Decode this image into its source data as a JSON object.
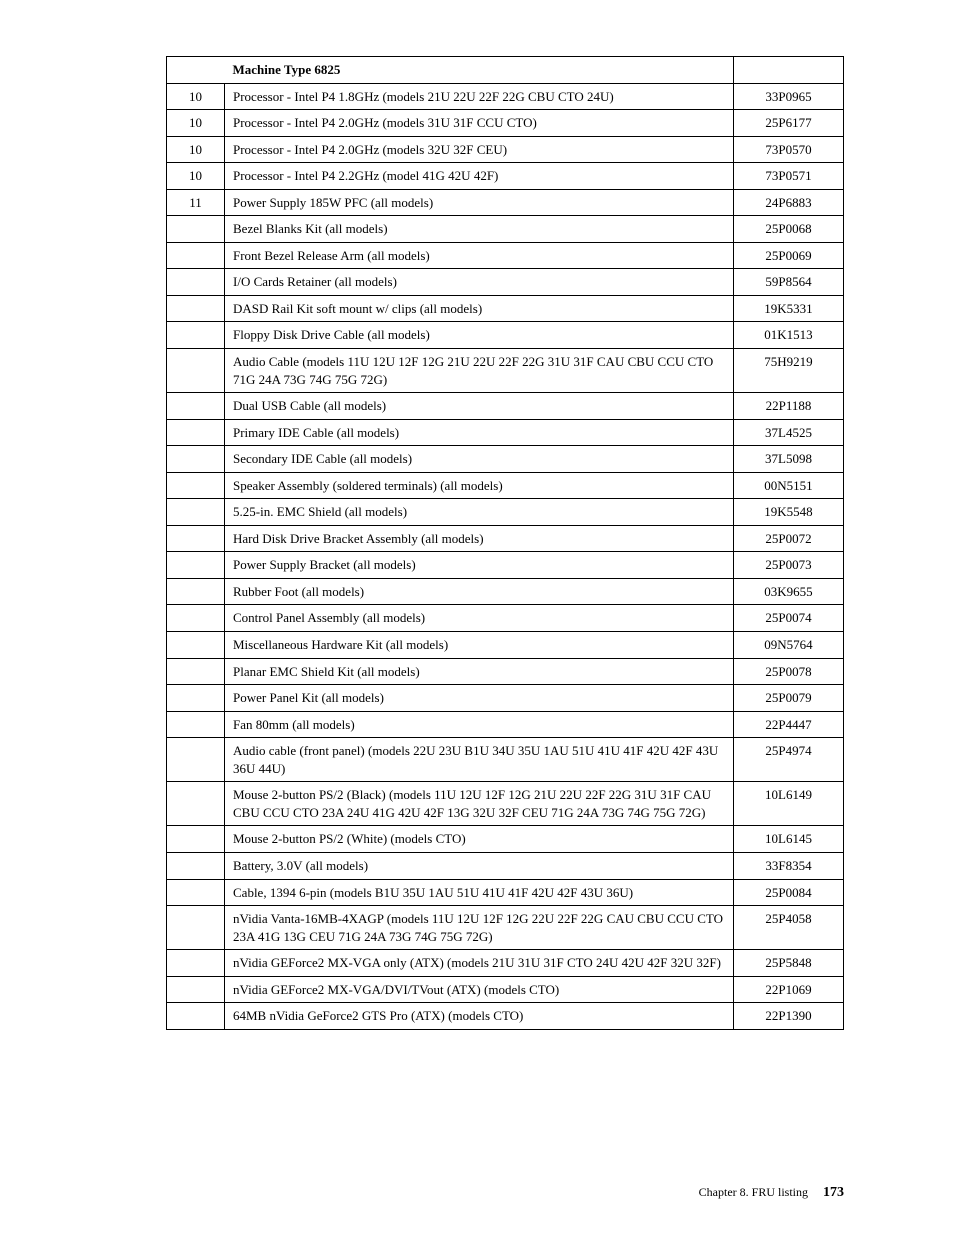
{
  "table": {
    "header": {
      "title": "Machine Type 6825"
    },
    "rows": [
      {
        "idx": "10",
        "desc": "Processor - Intel P4 1.8GHz (models 21U 22U 22F 22G CBU CTO 24U)",
        "part": "33P0965"
      },
      {
        "idx": "10",
        "desc": "Processor - Intel P4 2.0GHz (models 31U 31F CCU CTO)",
        "part": "25P6177"
      },
      {
        "idx": "10",
        "desc": "Processor - Intel P4 2.0GHz (models 32U 32F CEU)",
        "part": "73P0570"
      },
      {
        "idx": "10",
        "desc": "Processor - Intel P4 2.2GHz (model 41G 42U 42F)",
        "part": "73P0571"
      },
      {
        "idx": "11",
        "desc": "Power Supply 185W PFC (all models)",
        "part": "24P6883"
      },
      {
        "idx": "",
        "desc": "Bezel Blanks Kit (all models)",
        "part": "25P0068"
      },
      {
        "idx": "",
        "desc": "Front Bezel Release Arm (all models)",
        "part": "25P0069"
      },
      {
        "idx": "",
        "desc": "I/O Cards Retainer (all models)",
        "part": "59P8564"
      },
      {
        "idx": "",
        "desc": "DASD Rail Kit soft mount w/ clips (all models)",
        "part": "19K5331"
      },
      {
        "idx": "",
        "desc": "Floppy Disk Drive Cable (all models)",
        "part": "01K1513"
      },
      {
        "idx": "",
        "desc": "Audio Cable (models 11U 12U 12F 12G 21U 22U 22F 22G 31U 31F CAU CBU CCU CTO 71G 24A 73G 74G 75G 72G)",
        "part": "75H9219"
      },
      {
        "idx": "",
        "desc": "Dual USB Cable (all models)",
        "part": "22P1188"
      },
      {
        "idx": "",
        "desc": "Primary IDE Cable (all models)",
        "part": "37L4525"
      },
      {
        "idx": "",
        "desc": "Secondary IDE Cable (all models)",
        "part": "37L5098"
      },
      {
        "idx": "",
        "desc": "Speaker Assembly (soldered terminals) (all models)",
        "part": "00N5151"
      },
      {
        "idx": "",
        "desc": "5.25-in. EMC Shield (all models)",
        "part": "19K5548"
      },
      {
        "idx": "",
        "desc": "Hard Disk Drive Bracket Assembly (all models)",
        "part": "25P0072"
      },
      {
        "idx": "",
        "desc": "Power Supply Bracket (all models)",
        "part": "25P0073"
      },
      {
        "idx": "",
        "desc": "Rubber Foot (all models)",
        "part": "03K9655"
      },
      {
        "idx": "",
        "desc": "Control Panel Assembly (all models)",
        "part": "25P0074"
      },
      {
        "idx": "",
        "desc": "Miscellaneous Hardware Kit (all models)",
        "part": "09N5764"
      },
      {
        "idx": "",
        "desc": "Planar EMC Shield Kit (all models)",
        "part": "25P0078"
      },
      {
        "idx": "",
        "desc": "Power Panel Kit (all models)",
        "part": "25P0079"
      },
      {
        "idx": "",
        "desc": "Fan 80mm (all models)",
        "part": "22P4447"
      },
      {
        "idx": "",
        "desc": "Audio cable (front panel) (models 22U 23U B1U 34U 35U 1AU 51U 41U 41F 42U 42F 43U 36U 44U)",
        "part": "25P4974"
      },
      {
        "idx": "",
        "desc": "Mouse 2-button PS/2 (Black) (models 11U 12U 12F 12G 21U 22U 22F 22G 31U 31F CAU CBU CCU CTO 23A 24U 41G 42U 42F 13G 32U 32F CEU 71G 24A 73G 74G 75G 72G)",
        "part": "10L6149"
      },
      {
        "idx": "",
        "desc": "Mouse 2-button PS/2 (White) (models CTO)",
        "part": "10L6145"
      },
      {
        "idx": "",
        "desc": "Battery, 3.0V (all models)",
        "part": "33F8354"
      },
      {
        "idx": "",
        "desc": "Cable, 1394 6-pin (models B1U 35U 1AU 51U 41U 41F 42U 42F 43U 36U)",
        "part": "25P0084"
      },
      {
        "idx": "",
        "desc": "nVidia Vanta-16MB-4XAGP (models 11U 12U 12F 12G 22U 22F 22G CAU CBU CCU CTO 23A 41G 13G CEU 71G 24A 73G 74G 75G 72G)",
        "part": "25P4058"
      },
      {
        "idx": "",
        "desc": "nVidia GEForce2 MX-VGA only (ATX) (models 21U 31U 31F CTO 24U 42U 42F 32U 32F)",
        "part": "25P5848"
      },
      {
        "idx": "",
        "desc": "nVidia GEForce2 MX-VGA/DVI/TVout (ATX) (models CTO)",
        "part": "22P1069"
      },
      {
        "idx": "",
        "desc": "64MB nVidia GeForce2 GTS Pro (ATX) (models CTO)",
        "part": "22P1390"
      }
    ]
  },
  "footer": {
    "chapter": "Chapter 8. FRU listing",
    "page": "173"
  }
}
